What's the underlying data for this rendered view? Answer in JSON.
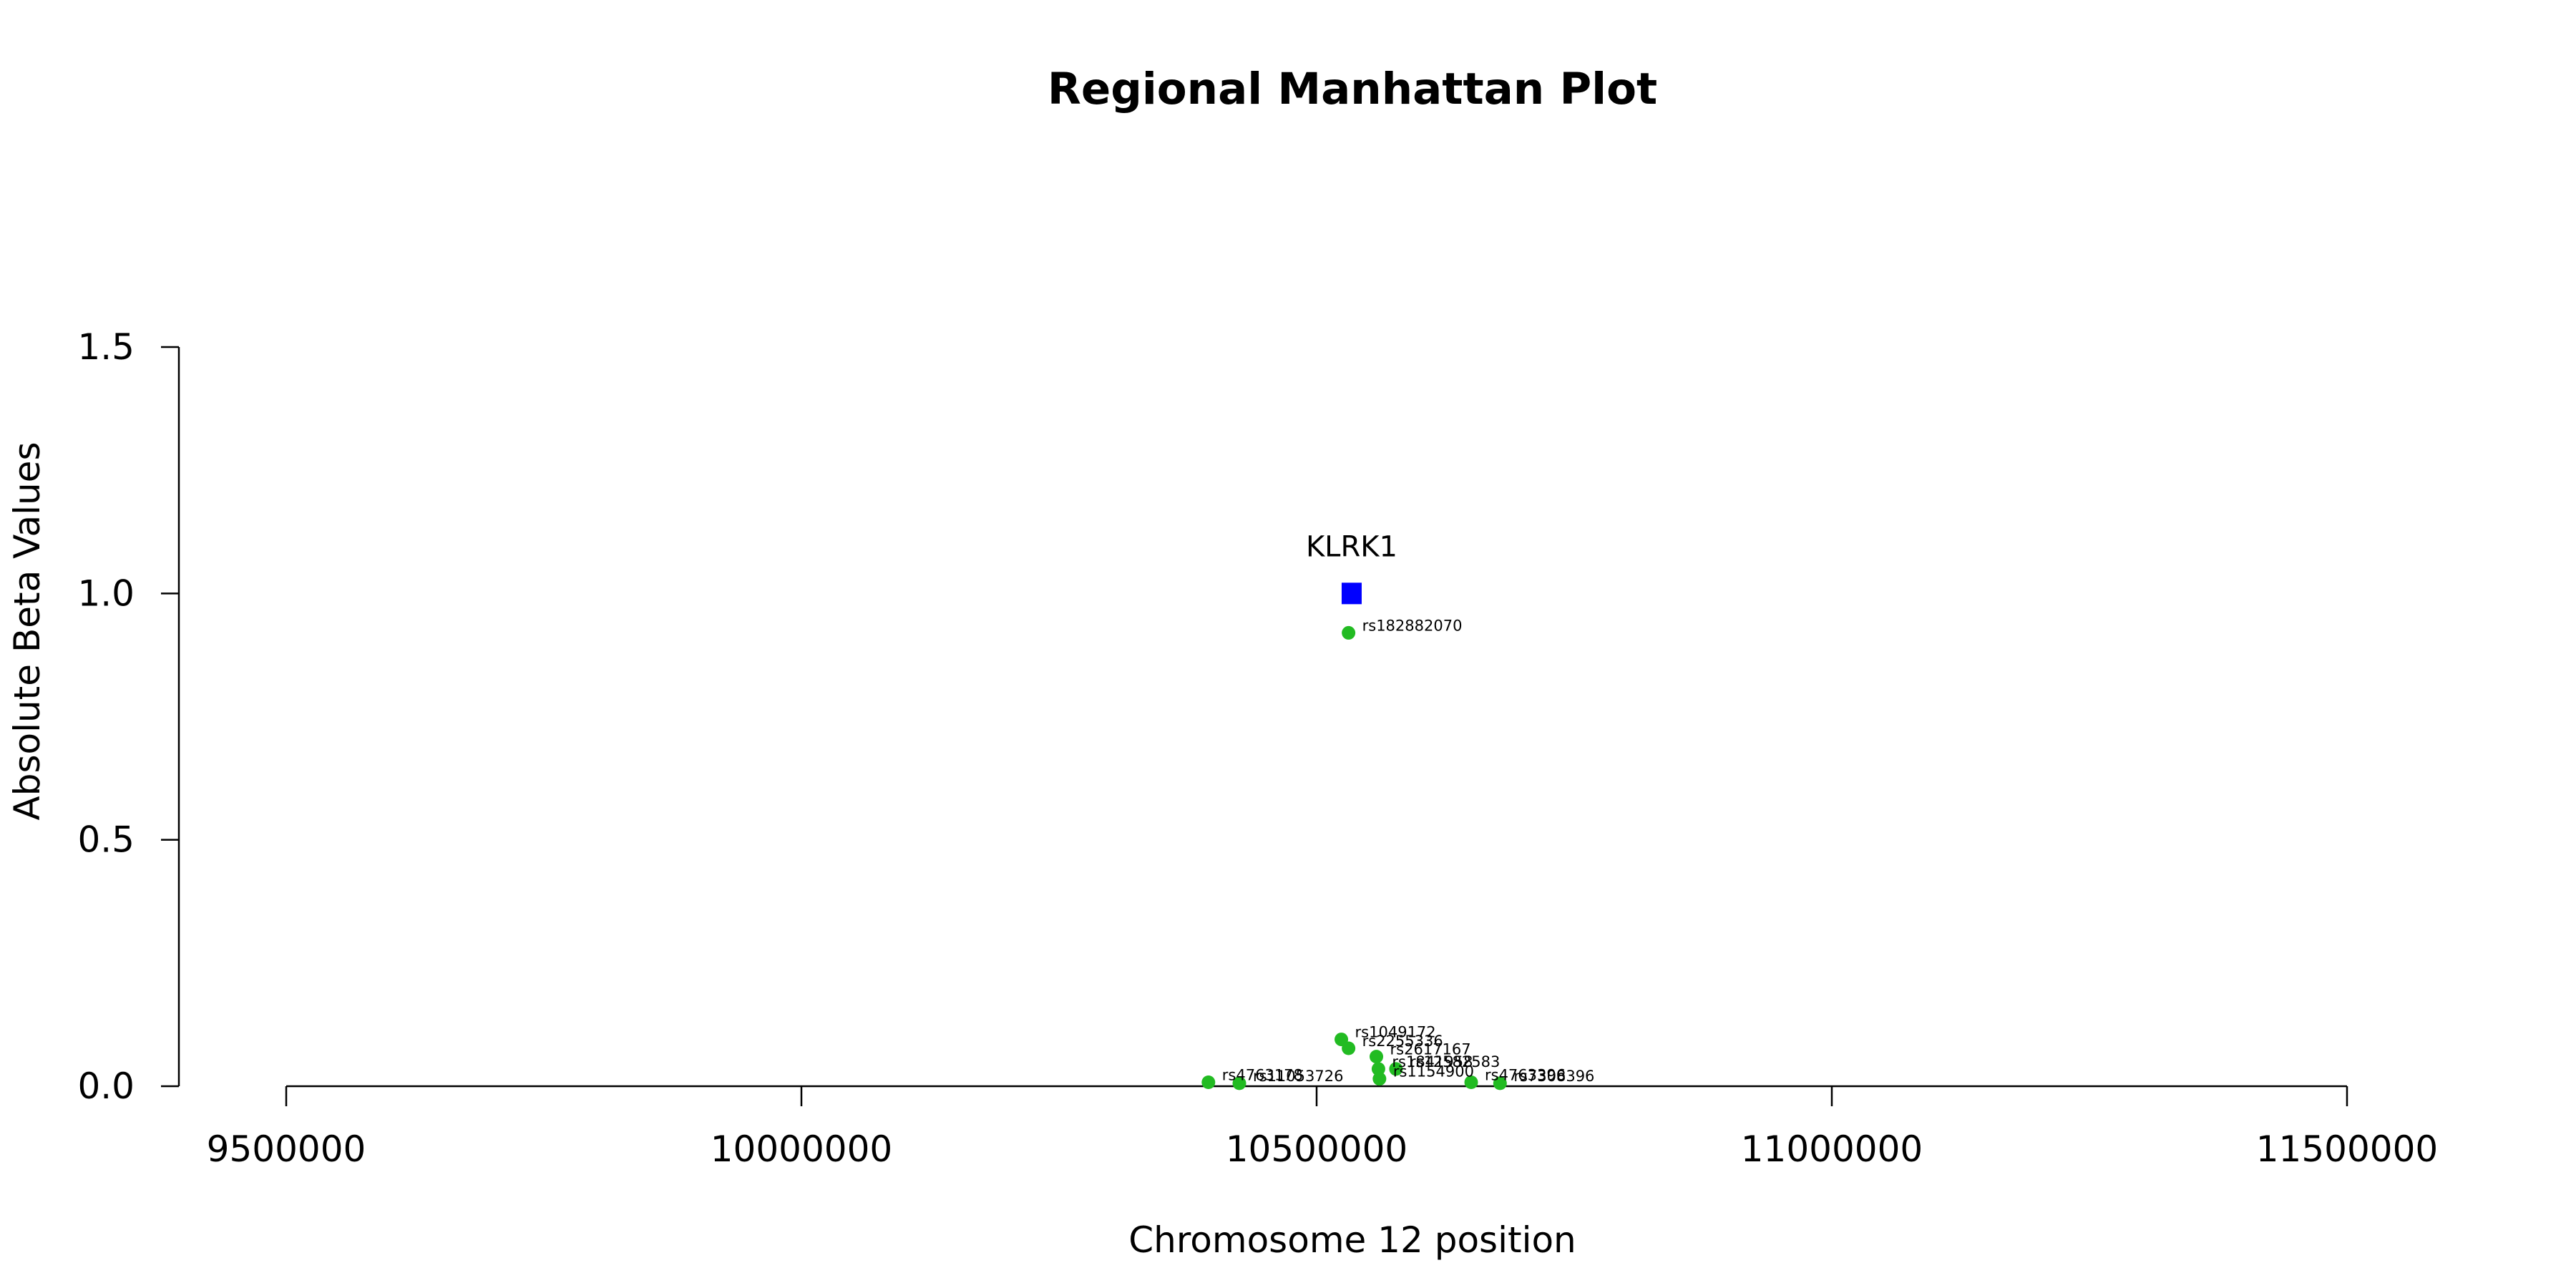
{
  "chart_data": {
    "type": "scatter",
    "title": "Regional Manhattan Plot",
    "xlabel": "Chromosome 12 position",
    "ylabel": "Absolute Beta Values",
    "xlim": [
      9500000,
      11500000
    ],
    "ylim": [
      0,
      1.5
    ],
    "x_ticks": [
      9500000,
      10000000,
      10500000,
      11000000,
      11500000
    ],
    "y_ticks": [
      0.0,
      0.5,
      1.0,
      1.5
    ],
    "x_tick_labels": [
      "9500000",
      "10000000",
      "10500000",
      "11000000",
      "11500000"
    ],
    "y_tick_labels": [
      "0.0",
      "0.5",
      "1.0",
      "1.5"
    ],
    "grid": false,
    "gene": {
      "name": "KLRK1",
      "x": 10534000,
      "y": 1.0,
      "color": "#0000ff",
      "marker": "square"
    },
    "snp_color": "#22bb22",
    "snps": [
      {
        "name": "rs182882070",
        "x": 10531000,
        "y": 0.92
      },
      {
        "name": "rs1049172",
        "x": 10524000,
        "y": 0.095
      },
      {
        "name": "rs2255336",
        "x": 10531000,
        "y": 0.077
      },
      {
        "name": "rs2617167",
        "x": 10558000,
        "y": 0.06
      },
      {
        "name": "rs1841958",
        "x": 10560000,
        "y": 0.035
      },
      {
        "name": "rs12582583",
        "x": 10577000,
        "y": 0.035
      },
      {
        "name": "rs1154900",
        "x": 10561000,
        "y": 0.015
      },
      {
        "name": "rs4763396",
        "x": 10650000,
        "y": 0.008
      },
      {
        "name": "rs7308396",
        "x": 10678000,
        "y": 0.006
      },
      {
        "name": "rs4763178",
        "x": 10395000,
        "y": 0.008
      },
      {
        "name": "rs11053726",
        "x": 10425000,
        "y": 0.006
      }
    ]
  }
}
